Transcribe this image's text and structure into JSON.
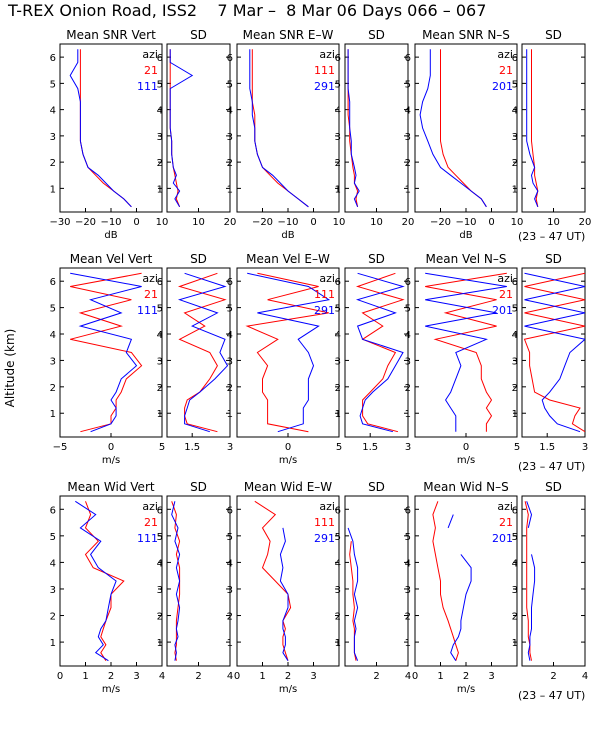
{
  "title": "T-REX Onion Road, ISS2    7 Mar –  8 Mar 06 Days 066 – 067",
  "ylabel": "Altitude (km)",
  "time_note": "(23 – 47 UT)",
  "colors": {
    "red": "#ff0000",
    "blue": "#0000ff",
    "axis": "#000000"
  },
  "rows": [
    {
      "panels": [
        {
          "title": "Mean SNR Vert",
          "xlabel": "dB",
          "azi_label": "azi",
          "azi_red": "21",
          "azi_blue": "111"
        },
        {
          "title": "SD"
        },
        {
          "title": "Mean SNR E–W",
          "xlabel": "dB",
          "azi_label": "azi",
          "azi_red": "111",
          "azi_blue": "291"
        },
        {
          "title": "SD"
        },
        {
          "title": "Mean SNR N–S",
          "xlabel": "dB",
          "azi_label": "azi",
          "azi_red": "21",
          "azi_blue": "201"
        },
        {
          "title": "SD"
        }
      ]
    },
    {
      "panels": [
        {
          "title": "Mean Vel Vert",
          "xlabel": "m/s",
          "azi_label": "azi",
          "azi_red": "21",
          "azi_blue": "111"
        },
        {
          "title": "SD"
        },
        {
          "title": "Mean Vel E–W",
          "xlabel": "m/s",
          "azi_label": "azi",
          "azi_red": "111",
          "azi_blue": "291"
        },
        {
          "title": "SD"
        },
        {
          "title": "Mean Vel N–S",
          "xlabel": "m/s",
          "azi_label": "azi",
          "azi_red": "21",
          "azi_blue": "201"
        },
        {
          "title": "SD"
        }
      ]
    },
    {
      "panels": [
        {
          "title": "Mean Wid Vert",
          "xlabel": "m/s",
          "azi_label": "azi",
          "azi_red": "21",
          "azi_blue": "111"
        },
        {
          "title": "SD"
        },
        {
          "title": "Mean Wid E–W",
          "xlabel": "m/s",
          "azi_label": "azi",
          "azi_red": "111",
          "azi_blue": "291"
        },
        {
          "title": "SD"
        },
        {
          "title": "Mean Wid N–S",
          "xlabel": "m/s",
          "azi_label": "azi",
          "azi_red": "21",
          "azi_blue": "201"
        },
        {
          "title": "SD"
        }
      ]
    }
  ],
  "chart_data": {
    "type": "line",
    "title": "T-REX Onion Road, ISS2    7 Mar –  8 Mar 06 Days 066 – 067",
    "ylabel": "Altitude (km)",
    "ylim": [
      0.1,
      6.5
    ],
    "yticks": [
      1,
      2,
      3,
      4,
      5,
      6
    ],
    "alt": [
      6.3,
      5.8,
      5.3,
      4.8,
      4.3,
      3.8,
      3.3,
      2.8,
      2.3,
      1.8,
      1.5,
      1.2,
      0.9,
      0.6,
      0.3
    ],
    "panels": [
      {
        "row": 0,
        "title": "Mean SNR Vert",
        "xlim": [
          -30,
          10
        ],
        "xticks": [
          -30,
          -20,
          -10,
          0,
          10
        ],
        "xlabel": "dB",
        "red": [
          -22,
          -22,
          -22,
          -22,
          -22,
          -22,
          -22,
          -22,
          -21,
          -19,
          -16,
          -13,
          -9,
          -5,
          -2
        ],
        "blue": [
          -23,
          -23,
          -26,
          -23,
          -22,
          -22,
          -22,
          -22,
          -21,
          -19,
          -15,
          -12,
          -9,
          -5,
          -2
        ]
      },
      {
        "row": 0,
        "title": "SD",
        "xlim": [
          0,
          20
        ],
        "xticks": [
          10,
          20
        ],
        "red": [
          1,
          1,
          1,
          1,
          1,
          1,
          1,
          1.5,
          1.5,
          2,
          2.5,
          3,
          3.5,
          3,
          4
        ],
        "blue": [
          1,
          1,
          8,
          1,
          1,
          1,
          1,
          1.5,
          1.5,
          2,
          3,
          2,
          4,
          2.5,
          4
        ]
      },
      {
        "row": 0,
        "title": "Mean SNR E–W",
        "xlim": [
          -30,
          10
        ],
        "xticks": [
          -20,
          -10,
          0,
          10
        ],
        "xlabel": "dB",
        "red": [
          -24,
          -24,
          -24,
          -24,
          -24,
          -23,
          -23,
          -23,
          -22,
          -20,
          -17,
          -14,
          -10,
          -6,
          -2
        ],
        "blue": [
          -25,
          -25,
          -25,
          -25,
          -24,
          -24,
          -23,
          -23,
          -22,
          -20,
          -16,
          -13,
          -10,
          -6,
          -2
        ]
      },
      {
        "row": 0,
        "title": "SD",
        "xlim": [
          0,
          20
        ],
        "xticks": [
          10,
          20
        ],
        "red": [
          1,
          1,
          1,
          1,
          1,
          1,
          1.5,
          1.5,
          2,
          2.5,
          3,
          3,
          4,
          3.5,
          4
        ],
        "blue": [
          1,
          1,
          1,
          1,
          1.5,
          1.5,
          1.5,
          2,
          2,
          3,
          3.5,
          3,
          4.5,
          3,
          4
        ]
      },
      {
        "row": 0,
        "title": "Mean SNR N–S",
        "xlim": [
          -30,
          10
        ],
        "xticks": [
          -20,
          -10,
          0,
          10
        ],
        "xlabel": "dB",
        "red": [
          -20,
          -20,
          -20,
          -20,
          -20,
          -20,
          -20,
          -20,
          -19,
          -17,
          -14,
          -11,
          -8,
          -4,
          -2
        ],
        "blue": [
          -24,
          -24,
          -24,
          -25,
          -27,
          -28,
          -27,
          -25,
          -23,
          -20,
          -16,
          -12,
          -8,
          -4,
          -2
        ]
      },
      {
        "row": 0,
        "title": "SD",
        "xlim": [
          0,
          20
        ],
        "xticks": [
          10,
          20
        ],
        "red": [
          3,
          3,
          3,
          3,
          3,
          3,
          3,
          3,
          3.5,
          4,
          4,
          4.5,
          5,
          4.5,
          5
        ],
        "blue": [
          1.5,
          1.5,
          1.5,
          1.5,
          1.5,
          1.5,
          1.5,
          1.5,
          2.5,
          4,
          3,
          3.5,
          5,
          4,
          5
        ]
      },
      {
        "row": 1,
        "title": "Mean Vel Vert",
        "xlim": [
          -5,
          5
        ],
        "xticks": [
          -5,
          0,
          5
        ],
        "xlabel": "m/s",
        "red": [
          3,
          -4,
          2,
          -3,
          1,
          -4,
          2,
          3,
          1.5,
          1,
          0.5,
          0.5,
          0,
          0,
          -3
        ],
        "blue": [
          -4,
          3,
          -2,
          1,
          -3,
          2,
          1.5,
          2.5,
          1,
          0.5,
          0,
          0.5,
          0.5,
          0,
          -2
        ]
      },
      {
        "row": 1,
        "title": "SD",
        "xlim": [
          0.5,
          3.0
        ],
        "xticks": [
          1.5,
          3.0
        ],
        "red": [
          2.5,
          1.0,
          2.8,
          1.2,
          2.0,
          1.0,
          2.2,
          2.5,
          2.2,
          1.8,
          1.3,
          1.2,
          1.2,
          1.3,
          2.5
        ],
        "blue": [
          1.2,
          2.8,
          1.0,
          2.5,
          1.5,
          2.8,
          2.6,
          2.9,
          2.4,
          1.8,
          1.4,
          1.3,
          1.2,
          1.2,
          2.2
        ]
      },
      {
        "row": 1,
        "title": "Mean Vel E–W",
        "xlim": [
          -5,
          5
        ],
        "xticks": [
          0,
          5
        ],
        "xlabel": "m/s",
        "red": [
          -3,
          3,
          -2,
          4,
          -4,
          -1,
          -3,
          -2,
          -2.5,
          -2.5,
          -2,
          -2,
          -2,
          -2,
          2
        ],
        "blue": [
          -4,
          2,
          4,
          -3,
          3,
          1,
          2,
          2.5,
          2,
          2,
          2,
          1.5,
          1.5,
          1.5,
          -1
        ]
      },
      {
        "row": 1,
        "title": "SD",
        "xlim": [
          0.5,
          3.0
        ],
        "xticks": [
          1.5,
          3.0
        ],
        "red": [
          2.5,
          1.0,
          2.8,
          1.2,
          2.0,
          1.2,
          2.5,
          2.2,
          2.0,
          1.5,
          1.2,
          1.2,
          1.2,
          1.4,
          2.6
        ],
        "blue": [
          1.0,
          2.8,
          1.0,
          2.5,
          1.0,
          1.2,
          2.8,
          2.5,
          2.2,
          1.6,
          1.3,
          1.2,
          1.1,
          1.2,
          2.4
        ]
      },
      {
        "row": 1,
        "title": "Mean Vel N–S",
        "xlim": [
          -5,
          5
        ],
        "xticks": [
          0,
          5
        ],
        "xlabel": "m/s",
        "red": [
          4,
          -4,
          3,
          -2,
          3,
          -3,
          1,
          1.5,
          1.5,
          2,
          2.5,
          2,
          2.5,
          2,
          2
        ],
        "blue": [
          -4,
          4,
          -4,
          3,
          -4,
          2,
          -1,
          -0.5,
          -1,
          -1.5,
          -2,
          -1.5,
          -1,
          -1,
          -1
        ]
      },
      {
        "row": 1,
        "title": "SD",
        "xlim": [
          0.5,
          3.0
        ],
        "xticks": [
          1.5,
          3.0
        ],
        "red": [
          3.0,
          0.6,
          3.0,
          0.6,
          3.0,
          0.6,
          0.8,
          0.8,
          0.9,
          1.0,
          1.6,
          2.8,
          2.6,
          2.5,
          3.0
        ],
        "blue": [
          0.6,
          3.0,
          0.6,
          3.0,
          0.6,
          3.0,
          2.4,
          2.2,
          2.0,
          1.6,
          1.3,
          1.4,
          1.6,
          1.9,
          2.8
        ]
      },
      {
        "row": 2,
        "title": "Mean Wid Vert",
        "xlim": [
          0,
          4
        ],
        "xticks": [
          0,
          1,
          2,
          3,
          4
        ],
        "xlabel": "m/s",
        "red": [
          1.0,
          1.2,
          1.0,
          1.5,
          1.0,
          1.3,
          2.5,
          2.0,
          2.0,
          1.8,
          1.7,
          1.6,
          1.8,
          1.6,
          1.8
        ],
        "blue": [
          0.6,
          1.4,
          0.8,
          1.6,
          1.2,
          1.5,
          2.2,
          2.0,
          1.9,
          1.8,
          1.6,
          1.5,
          1.7,
          1.4,
          1.9
        ]
      },
      {
        "row": 2,
        "title": "SD",
        "xlim": [
          0,
          4
        ],
        "xticks": [
          2,
          4
        ],
        "red": [
          0.3,
          0.6,
          0.5,
          0.8,
          0.6,
          0.8,
          0.8,
          0.8,
          0.7,
          0.6,
          0.6,
          0.6,
          0.6,
          0.5,
          0.6
        ],
        "blue": [
          0.5,
          0.3,
          0.7,
          0.5,
          0.8,
          0.6,
          0.8,
          0.6,
          0.8,
          0.7,
          0.6,
          0.7,
          0.5,
          0.6,
          0.5
        ]
      },
      {
        "row": 2,
        "title": "Mean Wid E–W",
        "xlim": [
          0,
          4
        ],
        "xticks": [
          0,
          1,
          2,
          3
        ],
        "xlabel": "m/s",
        "red": [
          0.7,
          1.5,
          1.0,
          1.3,
          1.2,
          1.0,
          1.5,
          2.0,
          2.1,
          1.8,
          1.9,
          1.8,
          1.8,
          1.9,
          2.0
        ],
        "blue": [
          null,
          null,
          1.8,
          1.9,
          1.7,
          1.8,
          1.7,
          2.0,
          2.0,
          1.8,
          1.8,
          1.9,
          1.9,
          1.8,
          2.0
        ]
      },
      {
        "row": 2,
        "title": "SD",
        "xlim": [
          0,
          4
        ],
        "xticks": [
          2,
          4
        ],
        "red": [
          null,
          null,
          null,
          0.4,
          0.3,
          0.4,
          0.5,
          0.5,
          0.6,
          0.5,
          0.6,
          0.6,
          0.6,
          0.6,
          0.7
        ],
        "blue": [
          null,
          null,
          0.2,
          0.5,
          0.6,
          0.8,
          0.8,
          0.6,
          0.8,
          0.6,
          0.7,
          0.6,
          0.6,
          0.6,
          0.8
        ]
      },
      {
        "row": 2,
        "title": "Mean Wid N–S",
        "xlim": [
          0,
          4
        ],
        "xticks": [
          0,
          1,
          2,
          3
        ],
        "xlabel": "m/s",
        "red": [
          0.9,
          0.7,
          0.8,
          0.7,
          0.8,
          0.9,
          1.0,
          1.0,
          1.1,
          1.3,
          1.4,
          1.5,
          1.6,
          1.7,
          1.6
        ],
        "blue": [
          null,
          1.5,
          1.3,
          null,
          1.8,
          2.2,
          2.2,
          2.0,
          1.9,
          1.8,
          1.8,
          1.7,
          1.5,
          1.4,
          1.6
        ]
      },
      {
        "row": 2,
        "title": "SD",
        "xlim": [
          0,
          4
        ],
        "xticks": [
          2,
          4
        ],
        "red": [
          0.2,
          0.4,
          0.3,
          0.3,
          0.3,
          0.3,
          0.3,
          0.3,
          0.3,
          0.4,
          0.4,
          0.4,
          0.5,
          0.5,
          0.6
        ],
        "blue": [
          0.3,
          0.6,
          0.4,
          null,
          0.6,
          0.8,
          0.8,
          0.7,
          0.6,
          0.6,
          0.6,
          0.5,
          0.5,
          0.4,
          0.5
        ]
      }
    ]
  }
}
